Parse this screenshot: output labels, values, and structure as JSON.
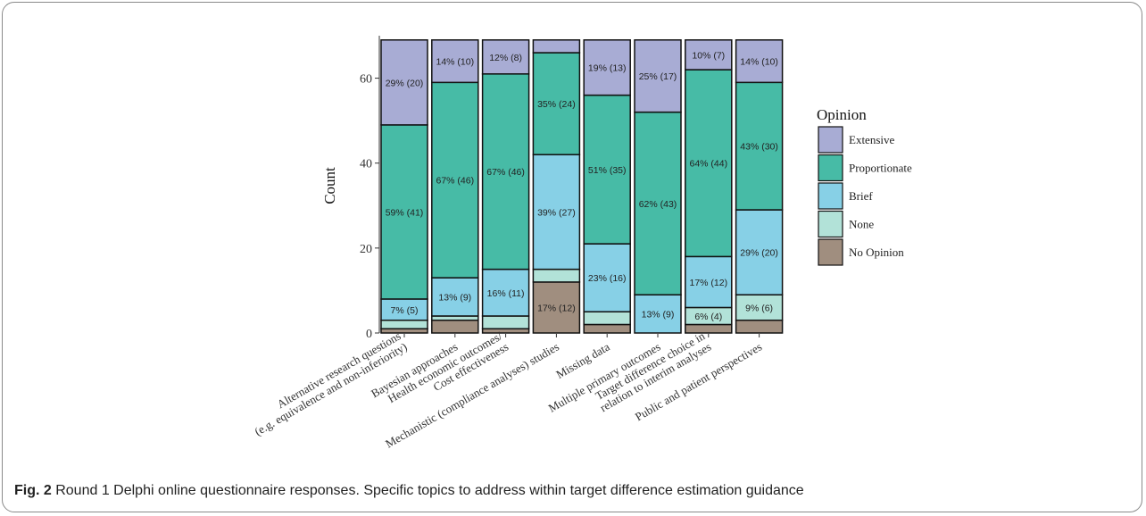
{
  "chart_data": {
    "type": "bar",
    "stacked": true,
    "ylabel": "Count",
    "xlabel": "",
    "ylim": [
      0,
      70
    ],
    "yticks": [
      0,
      20,
      40,
      60
    ],
    "categories": [
      [
        "Alternative research questions",
        "(e.g. equivalence and non-inferiority)"
      ],
      [
        "Bayesian approaches"
      ],
      [
        "Health economic outcomes/",
        "Cost effectiveness"
      ],
      [
        "Mechanistic (compliance analyses) studies"
      ],
      [
        "Missing data"
      ],
      [
        "Multiple primary outcomes"
      ],
      [
        "Target difference choice in",
        "relation to interim analyses"
      ],
      [
        "Public and patient perspectives"
      ]
    ],
    "series": [
      {
        "name": "No Opinion",
        "color": "#a08e7f",
        "values": [
          1,
          3,
          1,
          12,
          2,
          0,
          2,
          3
        ]
      },
      {
        "name": "None",
        "color": "#b2e2d8",
        "values": [
          2,
          1,
          3,
          3,
          3,
          0,
          4,
          6
        ]
      },
      {
        "name": "Brief",
        "color": "#87d0e6",
        "values": [
          5,
          9,
          11,
          27,
          16,
          9,
          12,
          20
        ]
      },
      {
        "name": "Proportionate",
        "color": "#47bba6",
        "values": [
          41,
          46,
          46,
          24,
          35,
          43,
          44,
          30
        ]
      },
      {
        "name": "Extensive",
        "color": "#a8acd4",
        "values": [
          20,
          10,
          8,
          3,
          13,
          17,
          7,
          10
        ]
      }
    ],
    "data_labels": [
      {
        "No Opinion": "",
        "None": "",
        "Brief": "7% (5)",
        "Proportionate": "59% (41)",
        "Extensive": "29% (20)"
      },
      {
        "No Opinion": "",
        "None": "",
        "Brief": "13% (9)",
        "Proportionate": "67% (46)",
        "Extensive": "14% (10)"
      },
      {
        "No Opinion": "",
        "None": "",
        "Brief": "16% (11)",
        "Proportionate": "67% (46)",
        "Extensive": "12% (8)"
      },
      {
        "No Opinion": "17% (12)",
        "None": "",
        "Brief": "39% (27)",
        "Proportionate": "35% (24)",
        "Extensive": ""
      },
      {
        "No Opinion": "",
        "None": "",
        "Brief": "23% (16)",
        "Proportionate": "51% (35)",
        "Extensive": "19% (13)"
      },
      {
        "No Opinion": "",
        "None": "",
        "Brief": "13% (9)",
        "Proportionate": "62% (43)",
        "Extensive": "25% (17)"
      },
      {
        "No Opinion": "",
        "None": "6% (4)",
        "Brief": "17% (12)",
        "Proportionate": "64% (44)",
        "Extensive": "10% (7)"
      },
      {
        "No Opinion": "",
        "None": "9% (6)",
        "Brief": "29% (20)",
        "Proportionate": "43% (30)",
        "Extensive": "14% (10)"
      }
    ],
    "legend": {
      "title": "Opinion",
      "placement": "right",
      "items": [
        "Extensive",
        "Proportionate",
        "Brief",
        "None",
        "No Opinion"
      ]
    },
    "grid": false
  },
  "caption": {
    "label": "Fig. 2",
    "text": " Round 1 Delphi online questionnaire responses. Specific topics to address within target difference estimation guidance"
  }
}
